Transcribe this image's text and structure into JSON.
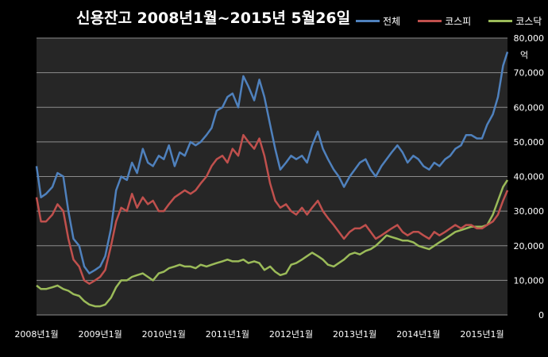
{
  "chart_data": {
    "type": "line",
    "title": "신용잔고 2008년1월~2015년 5월26일",
    "ylabel": "억",
    "ylim": [
      0,
      80000
    ],
    "yticks": [
      "0",
      "10,000",
      "20,000",
      "30,000",
      "40,000",
      "50,000",
      "60,000",
      "70,000",
      "80,000"
    ],
    "xlim": [
      2008.0,
      2015.4
    ],
    "xticks": [
      {
        "label": "2008년1월",
        "x": 2008.0
      },
      {
        "label": "2009년1월",
        "x": 2009.0
      },
      {
        "label": "2010년1월",
        "x": 2010.0
      },
      {
        "label": "2011년1월",
        "x": 2011.0
      },
      {
        "label": "2012년1월",
        "x": 2012.0
      },
      {
        "label": "2013년1월",
        "x": 2013.0
      },
      {
        "label": "2014년1월",
        "x": 2014.0
      },
      {
        "label": "2015년1월",
        "x": 2015.0
      }
    ],
    "grid": true,
    "legend_position": "top-right",
    "colors": {
      "background": "#262626",
      "grid": "#8c8c8c",
      "전체": "#4f81bd",
      "코스피": "#c0504d",
      "코스닥": "#9bbb59"
    },
    "series": [
      {
        "name": "전체",
        "color": "#4f81bd",
        "x": [
          2008.0,
          2008.07,
          2008.15,
          2008.25,
          2008.33,
          2008.42,
          2008.5,
          2008.58,
          2008.67,
          2008.75,
          2008.83,
          2008.92,
          2009.0,
          2009.08,
          2009.17,
          2009.25,
          2009.33,
          2009.42,
          2009.5,
          2009.58,
          2009.67,
          2009.75,
          2009.83,
          2009.92,
          2010.0,
          2010.08,
          2010.17,
          2010.25,
          2010.33,
          2010.42,
          2010.5,
          2010.58,
          2010.67,
          2010.75,
          2010.83,
          2010.92,
          2011.0,
          2011.08,
          2011.17,
          2011.25,
          2011.33,
          2011.42,
          2011.5,
          2011.58,
          2011.67,
          2011.75,
          2011.83,
          2011.92,
          2012.0,
          2012.08,
          2012.17,
          2012.25,
          2012.33,
          2012.42,
          2012.5,
          2012.58,
          2012.67,
          2012.75,
          2012.83,
          2012.92,
          2013.0,
          2013.08,
          2013.17,
          2013.25,
          2013.33,
          2013.42,
          2013.5,
          2013.58,
          2013.67,
          2013.75,
          2013.83,
          2013.92,
          2014.0,
          2014.08,
          2014.17,
          2014.25,
          2014.33,
          2014.42,
          2014.5,
          2014.58,
          2014.67,
          2014.75,
          2014.83,
          2014.92,
          2015.0,
          2015.08,
          2015.17,
          2015.25,
          2015.33,
          2015.4
        ],
        "values": [
          43000,
          34000,
          35000,
          37000,
          41000,
          40000,
          30000,
          22000,
          20000,
          14000,
          12000,
          13000,
          14000,
          17000,
          25000,
          36000,
          40000,
          39000,
          44000,
          41000,
          48000,
          44000,
          43000,
          46000,
          45000,
          49000,
          43000,
          47000,
          46000,
          50000,
          49000,
          50000,
          52000,
          54000,
          59000,
          60000,
          63000,
          64000,
          60000,
          69000,
          66000,
          62000,
          68000,
          63000,
          55000,
          48000,
          42000,
          44000,
          46000,
          45000,
          46000,
          44000,
          49000,
          53000,
          48000,
          45000,
          42000,
          40000,
          37000,
          40000,
          42000,
          44000,
          45000,
          42000,
          40000,
          43000,
          45000,
          47000,
          49000,
          47000,
          44000,
          46000,
          45000,
          43000,
          42000,
          44000,
          43000,
          45000,
          46000,
          48000,
          49000,
          52000,
          52000,
          51000,
          51000,
          55000,
          58000,
          63000,
          72000,
          76000
        ]
      },
      {
        "name": "코스피",
        "color": "#c0504d",
        "x": [
          2008.0,
          2008.07,
          2008.15,
          2008.25,
          2008.33,
          2008.42,
          2008.5,
          2008.58,
          2008.67,
          2008.75,
          2008.83,
          2008.92,
          2009.0,
          2009.08,
          2009.17,
          2009.25,
          2009.33,
          2009.42,
          2009.5,
          2009.58,
          2009.67,
          2009.75,
          2009.83,
          2009.92,
          2010.0,
          2010.08,
          2010.17,
          2010.25,
          2010.33,
          2010.42,
          2010.5,
          2010.58,
          2010.67,
          2010.75,
          2010.83,
          2010.92,
          2011.0,
          2011.08,
          2011.17,
          2011.25,
          2011.33,
          2011.42,
          2011.5,
          2011.58,
          2011.67,
          2011.75,
          2011.83,
          2011.92,
          2012.0,
          2012.08,
          2012.17,
          2012.25,
          2012.33,
          2012.42,
          2012.5,
          2012.58,
          2012.67,
          2012.75,
          2012.83,
          2012.92,
          2013.0,
          2013.08,
          2013.17,
          2013.25,
          2013.33,
          2013.42,
          2013.5,
          2013.58,
          2013.67,
          2013.75,
          2013.83,
          2013.92,
          2014.0,
          2014.08,
          2014.17,
          2014.25,
          2014.33,
          2014.42,
          2014.5,
          2014.58,
          2014.67,
          2014.75,
          2014.83,
          2014.92,
          2015.0,
          2015.08,
          2015.17,
          2015.25,
          2015.33,
          2015.4
        ],
        "values": [
          34000,
          27000,
          27000,
          29000,
          32000,
          30000,
          22000,
          16000,
          14000,
          10000,
          9000,
          10000,
          11000,
          13000,
          20000,
          27000,
          31000,
          30000,
          35000,
          31000,
          34000,
          32000,
          33000,
          30000,
          30000,
          32000,
          34000,
          35000,
          36000,
          35000,
          36000,
          38000,
          40000,
          43000,
          45000,
          46000,
          44000,
          48000,
          46000,
          52000,
          50000,
          48000,
          51000,
          46000,
          38000,
          33000,
          31000,
          32000,
          30000,
          29000,
          31000,
          29000,
          31000,
          33000,
          30000,
          28000,
          26000,
          24000,
          22000,
          24000,
          25000,
          25000,
          26000,
          24000,
          22000,
          23000,
          24000,
          25000,
          26000,
          24000,
          23000,
          24000,
          24000,
          23000,
          22000,
          24000,
          23000,
          24000,
          25000,
          26000,
          25000,
          26000,
          26000,
          25000,
          25000,
          26000,
          27000,
          29000,
          33000,
          36000
        ]
      },
      {
        "name": "코스닥",
        "color": "#9bbb59",
        "x": [
          2008.0,
          2008.07,
          2008.15,
          2008.25,
          2008.33,
          2008.42,
          2008.5,
          2008.58,
          2008.67,
          2008.75,
          2008.83,
          2008.92,
          2009.0,
          2009.08,
          2009.17,
          2009.25,
          2009.33,
          2009.42,
          2009.5,
          2009.58,
          2009.67,
          2009.75,
          2009.83,
          2009.92,
          2010.0,
          2010.08,
          2010.17,
          2010.25,
          2010.33,
          2010.42,
          2010.5,
          2010.58,
          2010.67,
          2010.75,
          2010.83,
          2010.92,
          2011.0,
          2011.08,
          2011.17,
          2011.25,
          2011.33,
          2011.42,
          2011.5,
          2011.58,
          2011.67,
          2011.75,
          2011.83,
          2011.92,
          2012.0,
          2012.08,
          2012.17,
          2012.25,
          2012.33,
          2012.42,
          2012.5,
          2012.58,
          2012.67,
          2012.75,
          2012.83,
          2012.92,
          2013.0,
          2013.08,
          2013.17,
          2013.25,
          2013.33,
          2013.42,
          2013.5,
          2013.58,
          2013.67,
          2013.75,
          2013.83,
          2013.92,
          2014.0,
          2014.08,
          2014.17,
          2014.25,
          2014.33,
          2014.42,
          2014.5,
          2014.58,
          2014.67,
          2014.75,
          2014.83,
          2014.92,
          2015.0,
          2015.08,
          2015.17,
          2015.25,
          2015.33,
          2015.4
        ],
        "values": [
          8500,
          7500,
          7500,
          8000,
          8500,
          7500,
          7000,
          6000,
          5500,
          4000,
          3000,
          2500,
          2500,
          3000,
          5000,
          8000,
          10000,
          10000,
          11000,
          11500,
          12000,
          11000,
          10000,
          12000,
          12500,
          13500,
          14000,
          14500,
          14000,
          14000,
          13500,
          14500,
          14000,
          14500,
          15000,
          15500,
          16000,
          15500,
          15500,
          16000,
          15000,
          15500,
          15000,
          13000,
          14000,
          12500,
          11500,
          12000,
          14500,
          15000,
          16000,
          17000,
          18000,
          17000,
          16000,
          14500,
          14000,
          15000,
          16000,
          17500,
          18000,
          17500,
          18500,
          19000,
          20000,
          21500,
          23000,
          22500,
          22000,
          21500,
          21500,
          21000,
          20000,
          19500,
          19000,
          20000,
          21000,
          22000,
          23000,
          24000,
          24500,
          25000,
          25500,
          25500,
          25500,
          26000,
          29000,
          33000,
          37000,
          39000
        ]
      }
    ]
  }
}
